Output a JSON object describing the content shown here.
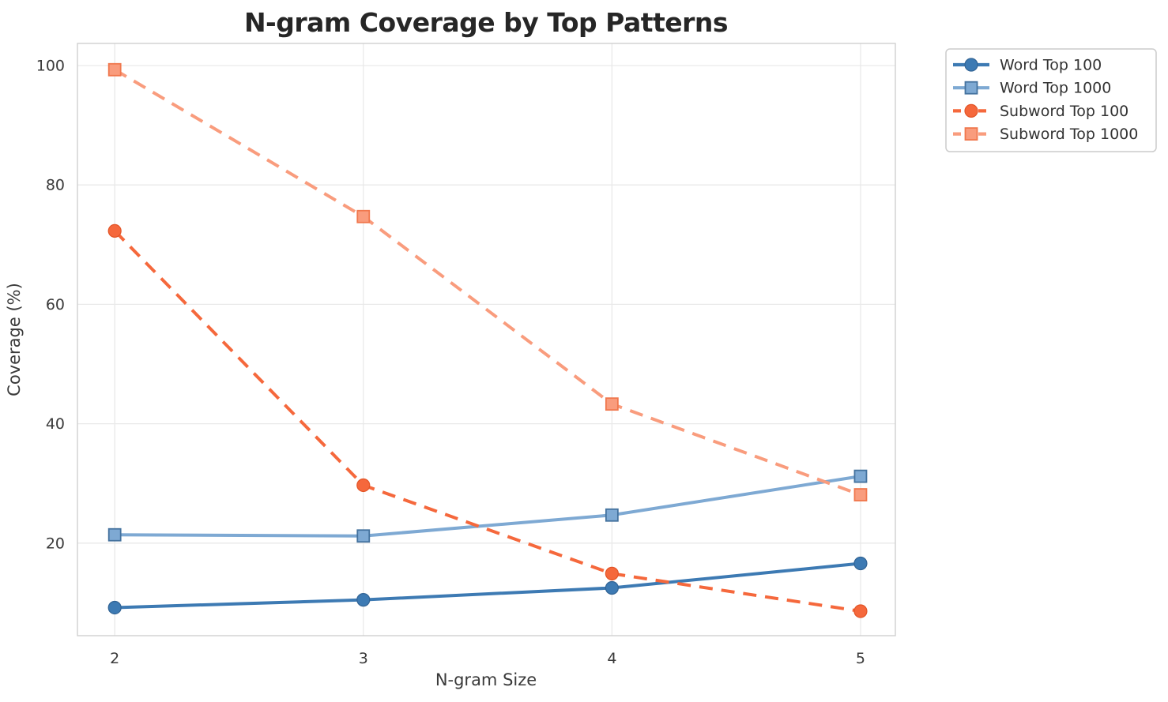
{
  "figure": {
    "background": "#ffffff"
  },
  "chart_data": {
    "type": "line",
    "title": "N-gram Coverage by Top Patterns",
    "xlabel": "N-gram Size",
    "ylabel": "Coverage (%)",
    "x": [
      2,
      3,
      4,
      5
    ],
    "x_tick_labels": [
      "2",
      "3",
      "4",
      "5"
    ],
    "y_tick_values": [
      20,
      40,
      60,
      80,
      100
    ],
    "y_tick_labels": [
      "20",
      "40",
      "60",
      "80",
      "100"
    ],
    "xlim": [
      1.85,
      5.14
    ],
    "ylim": [
      4.5,
      103.7
    ],
    "grid": true,
    "legend_position": "outside-upper-right",
    "series": [
      {
        "name": "Word Top 100",
        "values": [
          9.2,
          10.5,
          12.5,
          16.6
        ],
        "color": "#3d7ab3",
        "marker_edge": "#316394",
        "marker": "circle",
        "line_style": "solid"
      },
      {
        "name": "Word Top 1000",
        "values": [
          21.4,
          21.2,
          24.7,
          31.2
        ],
        "color": "#7ea9d3",
        "marker_edge": "#44729e",
        "marker": "square",
        "line_style": "solid"
      },
      {
        "name": "Subword Top 100",
        "values": [
          72.3,
          29.7,
          14.9,
          8.6
        ],
        "color": "#f5683c",
        "marker_edge": "#e25426",
        "marker": "circle",
        "line_style": "dashed"
      },
      {
        "name": "Subword Top 1000",
        "values": [
          99.3,
          74.7,
          43.3,
          28.1
        ],
        "color": "#f99c7d",
        "marker_edge": "#f0774d",
        "marker": "square",
        "line_style": "dashed"
      }
    ]
  },
  "colors": {
    "grid": "#e9e9e9",
    "spine": "#cfcfcf",
    "title_text": "#262626",
    "tick_text": "#3a3a3a",
    "legend_border": "#cccccc",
    "legend_background": "#ffffff"
  }
}
